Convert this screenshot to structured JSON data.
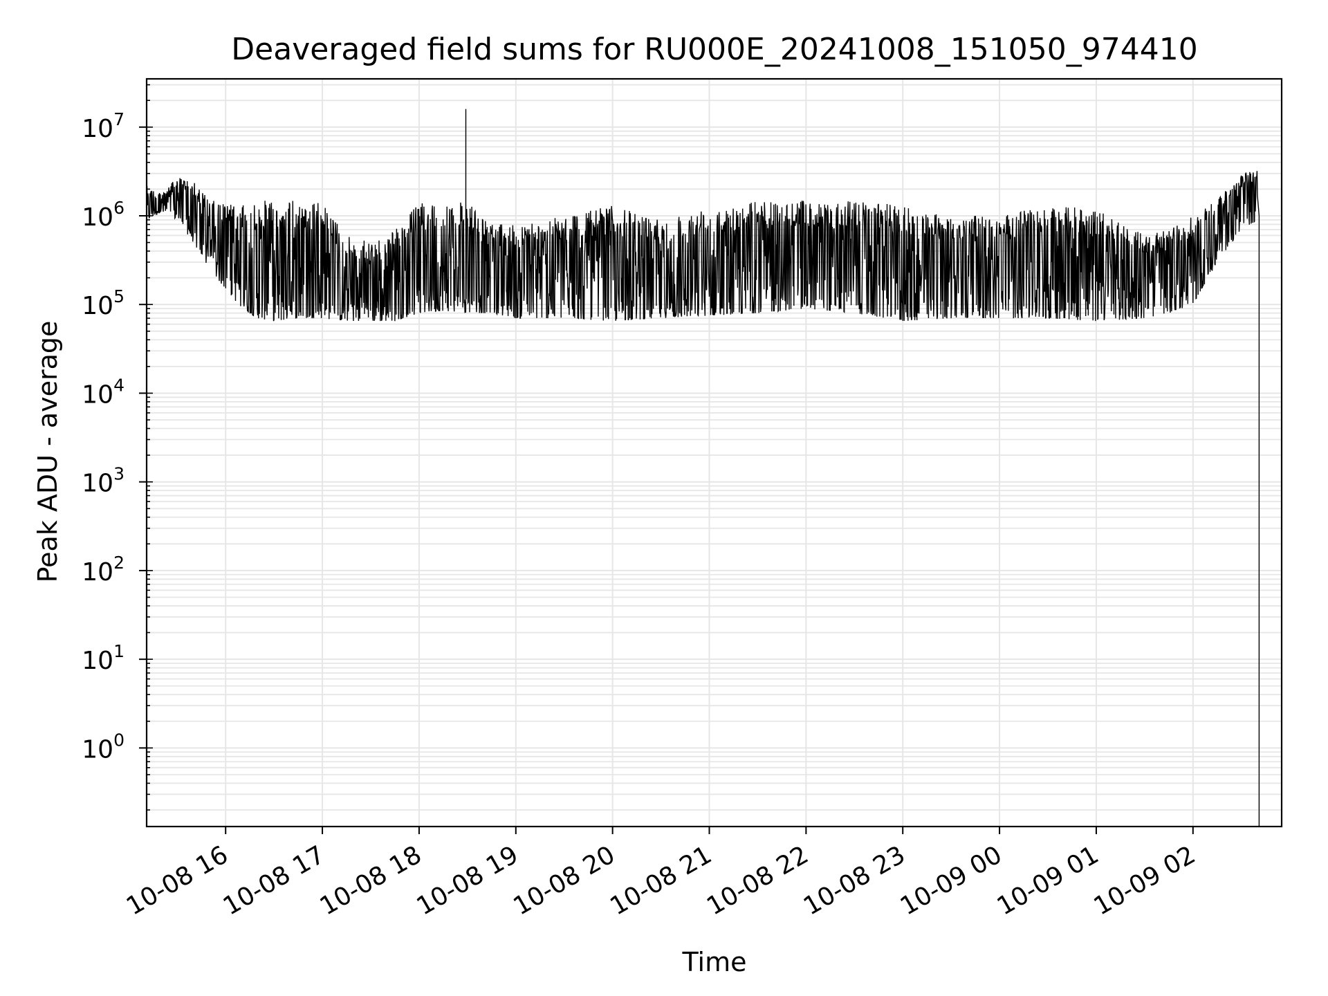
{
  "chart_data": {
    "type": "line",
    "title": "Deaveraged field sums for RU000E_20241008_151050_974410",
    "xlabel": "Time",
    "ylabel": "Peak ADU - average",
    "yscale": "log",
    "ylim": [
      0.13,
      35000000
    ],
    "xlim": [
      "2024-10-08 15:11",
      "2024-10-09 02:55"
    ],
    "grid": true,
    "grid_color": "#e6e6e6",
    "line_color": "#000000",
    "x_ticks": [
      "10-08 16",
      "10-08 17",
      "10-08 18",
      "10-08 19",
      "10-08 20",
      "10-08 21",
      "10-08 22",
      "10-08 23",
      "10-09 00",
      "10-09 01",
      "10-09 02"
    ],
    "x_tick_times": [
      "2024-10-08 16:00",
      "2024-10-08 17:00",
      "2024-10-08 18:00",
      "2024-10-08 19:00",
      "2024-10-08 20:00",
      "2024-10-08 21:00",
      "2024-10-08 22:00",
      "2024-10-08 23:00",
      "2024-10-09 00:00",
      "2024-10-09 01:00",
      "2024-10-09 02:00"
    ],
    "y_ticks": [
      {
        "value": 1,
        "base": "10",
        "exp": "0"
      },
      {
        "value": 10,
        "base": "10",
        "exp": "1"
      },
      {
        "value": 100,
        "base": "10",
        "exp": "2"
      },
      {
        "value": 1000,
        "base": "10",
        "exp": "3"
      },
      {
        "value": 10000,
        "base": "10",
        "exp": "4"
      },
      {
        "value": 100000,
        "base": "10",
        "exp": "5"
      },
      {
        "value": 1000000,
        "base": "10",
        "exp": "6"
      },
      {
        "value": 10000000,
        "base": "10",
        "exp": "7"
      }
    ],
    "series": [
      {
        "x": [
          "2024-10-08 15:11",
          "2024-10-08 15:20",
          "2024-10-08 15:30",
          "2024-10-08 15:40",
          "2024-10-08 15:50",
          "2024-10-08 16:00",
          "2024-10-08 16:10",
          "2024-10-08 16:20",
          "2024-10-08 16:30",
          "2024-10-08 16:45",
          "2024-10-08 17:00",
          "2024-10-08 17:15",
          "2024-10-08 17:30",
          "2024-10-08 17:45",
          "2024-10-08 18:00",
          "2024-10-08 18:15",
          "2024-10-08 18:30",
          "2024-10-08 18:45",
          "2024-10-08 19:00",
          "2024-10-08 19:30",
          "2024-10-08 20:00",
          "2024-10-08 20:30",
          "2024-10-08 21:00",
          "2024-10-08 21:30",
          "2024-10-08 22:00",
          "2024-10-08 22:30",
          "2024-10-08 23:00",
          "2024-10-08 23:30",
          "2024-10-09 00:00",
          "2024-10-09 00:30",
          "2024-10-09 01:00",
          "2024-10-09 01:30",
          "2024-10-09 01:45",
          "2024-10-09 02:00",
          "2024-10-09 02:15",
          "2024-10-09 02:30",
          "2024-10-09 02:40"
        ],
        "y_low": [
          900000,
          1100000,
          900000,
          500000,
          250000,
          150000,
          90000,
          70000,
          65000,
          70000,
          70000,
          65000,
          65000,
          65000,
          80000,
          85000,
          80000,
          80000,
          70000,
          70000,
          65000,
          70000,
          75000,
          80000,
          90000,
          80000,
          65000,
          70000,
          70000,
          70000,
          65000,
          70000,
          80000,
          100000,
          300000,
          700000,
          900000
        ],
        "y_high": [
          2200000,
          1800000,
          2700000,
          2500000,
          1500000,
          1400000,
          1300000,
          1500000,
          1500000,
          1500000,
          1400000,
          600000,
          500000,
          700000,
          1400000,
          1500000,
          1400000,
          800000,
          800000,
          1000000,
          1300000,
          900000,
          1300000,
          1500000,
          1500000,
          1500000,
          1300000,
          1000000,
          1000000,
          1300000,
          1200000,
          600000,
          700000,
          1000000,
          1500000,
          3000000,
          3500000
        ]
      }
    ],
    "annotations": [
      {
        "x": "2024-10-08 18:29",
        "y": 16000000,
        "note_type": "spike"
      },
      {
        "x": "2024-10-09 02:41",
        "y": 0.13,
        "note_type": "drop"
      }
    ]
  }
}
